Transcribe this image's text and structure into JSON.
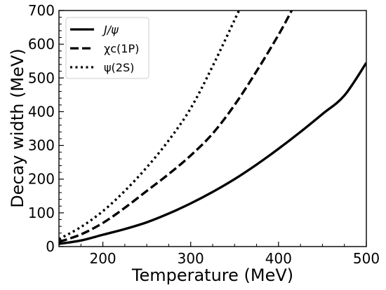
{
  "chart_data": {
    "type": "line",
    "xlabel": "Temperature (MeV)",
    "ylabel": "Decay width (MeV)",
    "xlim": [
      150,
      500
    ],
    "ylim": [
      0,
      700
    ],
    "xticks": [
      "200",
      "300",
      "400",
      "500"
    ],
    "yticks": [
      "0",
      "100",
      "200",
      "300",
      "400",
      "500",
      "600",
      "700"
    ],
    "grid": false,
    "legend_position": "top-left",
    "series": [
      {
        "name": "J/ψ",
        "style": "solid",
        "color": "#000000",
        "x": [
          150,
          175,
          200,
          225,
          250,
          275,
          300,
          325,
          350,
          375,
          400,
          425,
          450,
          475,
          500
        ],
        "y": [
          8,
          18,
          35,
          52,
          72,
          98,
          128,
          162,
          200,
          243,
          290,
          340,
          393,
          448,
          545
        ]
      },
      {
        "name": "χc(1P)",
        "style": "dashed",
        "color": "#000000",
        "x": [
          150,
          175,
          200,
          225,
          250,
          275,
          300,
          325,
          350,
          375,
          400,
          415
        ],
        "y": [
          14,
          36,
          70,
          115,
          165,
          215,
          270,
          335,
          420,
          520,
          628,
          700
        ]
      },
      {
        "name": "ψ(2S)",
        "style": "dotted",
        "color": "#000000",
        "x": [
          150,
          175,
          200,
          225,
          250,
          275,
          300,
          325,
          355
        ],
        "y": [
          22,
          58,
          105,
          165,
          235,
          315,
          410,
          535,
          700
        ]
      }
    ]
  }
}
